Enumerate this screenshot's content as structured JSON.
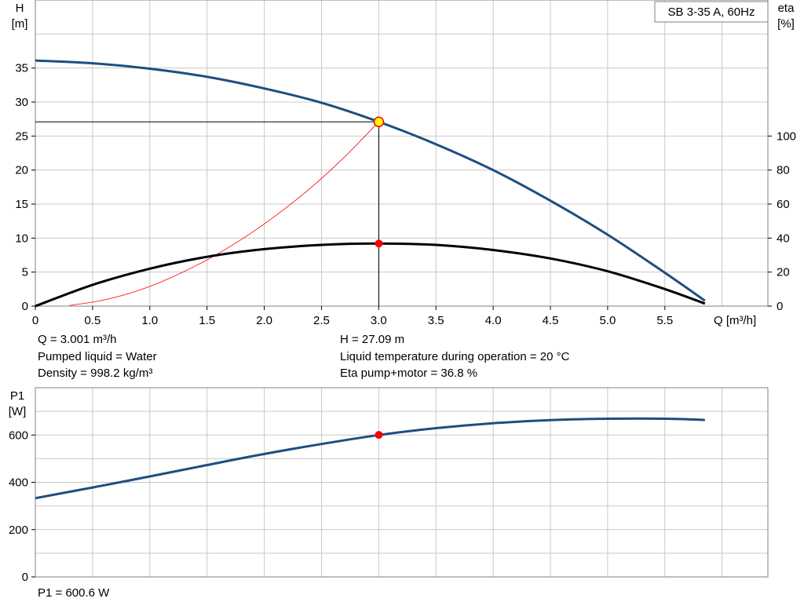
{
  "title_box": "SB 3-35 A, 60Hz",
  "colors": {
    "head_curve": "#1c4f80",
    "eta_curve": "#000000",
    "power_curve": "#1c4f80",
    "system_curve": "#ff0000",
    "duty_point_fill": "#ffff00",
    "duty_point_stroke": "#ff0000",
    "marker": "#ff0000",
    "grid": "#c8c8c8"
  },
  "chart_data": [
    {
      "type": "line",
      "name": "head-eta-chart",
      "xlabel": "Q [m³/h]",
      "ylabel_left_line1": "H",
      "ylabel_left_line2": "[m]",
      "ylabel_right_line1": "eta",
      "ylabel_right_line2": "[%]",
      "xlim": [
        0,
        6.4
      ],
      "ylim_left": [
        0,
        45
      ],
      "ylim_right": [
        0,
        180
      ],
      "x_ticks": [
        "0",
        "0.5",
        "1.0",
        "1.5",
        "2.0",
        "2.5",
        "3.0",
        "3.5",
        "4.0",
        "4.5",
        "5.0",
        "5.5"
      ],
      "x_tick_values": [
        0,
        0.5,
        1.0,
        1.5,
        2.0,
        2.5,
        3.0,
        3.5,
        4.0,
        4.5,
        5.0,
        5.5
      ],
      "y_ticks_left": [
        "0",
        "5",
        "10",
        "15",
        "20",
        "25",
        "30",
        "35"
      ],
      "y_tick_values_left": [
        0,
        5,
        10,
        15,
        20,
        25,
        30,
        35
      ],
      "y_ticks_right": [
        "0",
        "20",
        "40",
        "60",
        "80",
        "100"
      ],
      "y_tick_values_right": [
        0,
        20,
        40,
        60,
        80,
        100
      ],
      "grid": true,
      "series": [
        {
          "key": "head",
          "axis": "left",
          "x": [
            0,
            0.5,
            1.0,
            1.5,
            2.0,
            2.5,
            3.0,
            3.5,
            4.0,
            4.5,
            5.0,
            5.5,
            5.85
          ],
          "y": [
            36.1,
            35.7,
            34.9,
            33.7,
            32.0,
            29.9,
            27.1,
            23.8,
            20.0,
            15.5,
            10.5,
            4.9,
            0.8
          ]
        },
        {
          "key": "eta",
          "axis": "right",
          "x": [
            0,
            0.5,
            1.0,
            1.5,
            2.0,
            2.5,
            3.0,
            3.5,
            4.0,
            4.5,
            5.0,
            5.5,
            5.85
          ],
          "y": [
            0,
            12.5,
            22,
            29,
            33.5,
            36,
            36.8,
            36,
            33,
            28,
            20.5,
            10,
            1.5
          ]
        },
        {
          "key": "system",
          "axis": "left",
          "x": [
            0.3,
            0.6,
            0.9,
            1.2,
            1.5,
            1.8,
            2.1,
            2.4,
            2.7,
            3.0
          ],
          "y": [
            0.1,
            0.9,
            2.3,
            4.3,
            6.8,
            9.8,
            13.3,
            17.3,
            21.9,
            27.09
          ]
        }
      ],
      "duty_point": {
        "x": 3.001,
        "y": 27.09
      },
      "eta_point": {
        "x": 3.001,
        "y": 36.8
      }
    },
    {
      "type": "line",
      "name": "power-chart",
      "ylabel_line1": "P1",
      "ylabel_line2": "[W]",
      "xlim": [
        0,
        6.4
      ],
      "ylim": [
        0,
        800
      ],
      "y_ticks": [
        "0",
        "200",
        "400",
        "600"
      ],
      "y_tick_values": [
        0,
        200,
        400,
        600
      ],
      "grid": true,
      "series": [
        {
          "key": "p1",
          "x": [
            0,
            0.5,
            1.0,
            1.5,
            2.0,
            2.5,
            3.0,
            3.5,
            4.0,
            4.5,
            5.0,
            5.5,
            5.85
          ],
          "y": [
            333,
            378,
            425,
            473,
            520,
            562,
            600,
            629,
            650,
            663,
            669,
            669,
            664
          ]
        }
      ],
      "marker": {
        "x": 3.001,
        "y": 600.6
      }
    }
  ],
  "info": {
    "q": "Q = 3.001 m³/h",
    "h": "H = 27.09 m",
    "liquid": "Pumped liquid = Water",
    "temperature": "Liquid temperature during operation = 20 °C",
    "density": "Density = 998.2 kg/m³",
    "eta": "Eta pump+motor = 36.8 %",
    "p1": "P1 = 600.6 W"
  }
}
